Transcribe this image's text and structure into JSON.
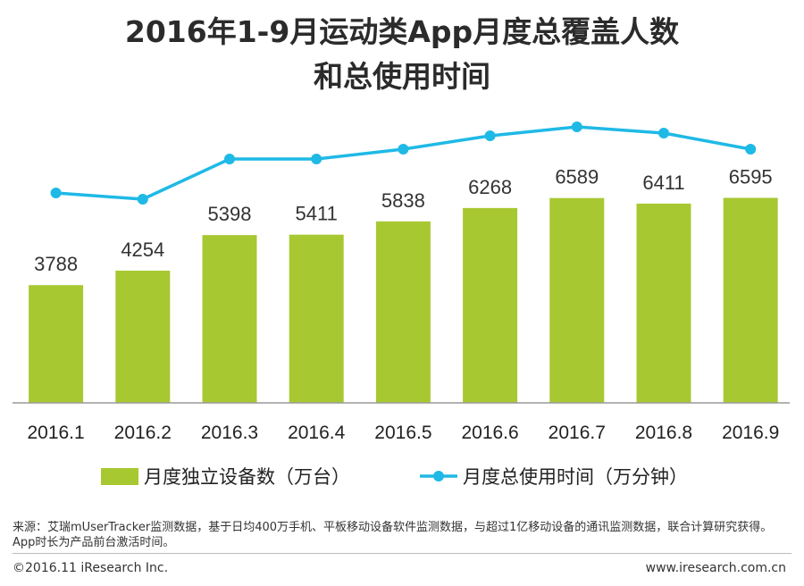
{
  "title_line1": "2016年1-9月运动类App月度总覆盖人数",
  "title_line2": "和总使用时间",
  "chart_data": {
    "type": "bar",
    "categories": [
      "2016.1",
      "2016.2",
      "2016.3",
      "2016.4",
      "2016.5",
      "2016.6",
      "2016.7",
      "2016.8",
      "2016.9"
    ],
    "series": [
      {
        "name": "月度独立设备数（万台）",
        "type": "bar",
        "values": [
          3788,
          4254,
          5398,
          5411,
          5838,
          6268,
          6589,
          6411,
          6595
        ]
      },
      {
        "name": "月度总使用时间（万分钟）",
        "type": "line",
        "values": [
          null,
          null,
          null,
          null,
          null,
          null,
          null,
          null,
          null
        ]
      }
    ],
    "legend_position": "bottom"
  },
  "colors": {
    "bar": "#a8c832",
    "line": "#1fb9e6",
    "axis": "#999999"
  },
  "source_text": "来源：艾瑞mUserTracker监测数据，基于日均400万手机、平板移动设备软件监测数据，与超过1亿移动设备的通讯监测数据，联合计算研究获得。App时长为产品前台激活时间。",
  "copyright": "©2016.11 iResearch Inc.",
  "website": "www.iresearch.com.cn"
}
